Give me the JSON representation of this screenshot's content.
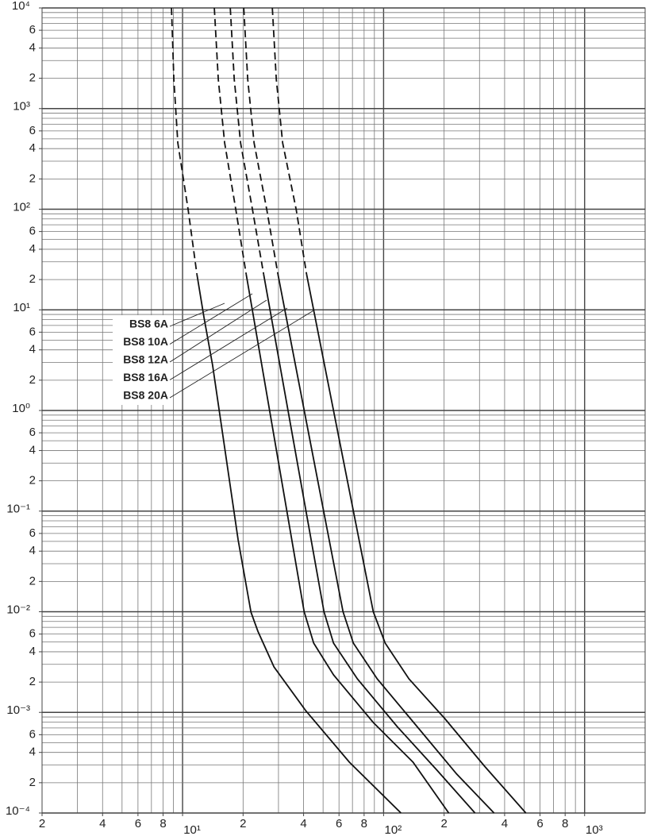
{
  "chart_data": {
    "type": "line",
    "xscale": "log",
    "yscale": "log",
    "grid": true,
    "color": "#111111",
    "xlim": [
      2,
      2000
    ],
    "ylim": [
      0.0001,
      10000
    ],
    "xticks": [
      2,
      4,
      6,
      8,
      {
        "value": 10,
        "label": "10¹"
      },
      {
        "value": 20,
        "label": "2"
      },
      {
        "value": 40,
        "label": "4"
      },
      {
        "value": 60,
        "label": "6"
      },
      {
        "value": 80,
        "label": "8"
      },
      {
        "value": 100,
        "label": "10²"
      },
      {
        "value": 200,
        "label": "2"
      },
      {
        "value": 400,
        "label": "4"
      },
      {
        "value": 600,
        "label": "6"
      },
      {
        "value": 800,
        "label": "8"
      },
      {
        "value": 1000,
        "label": "10³"
      }
    ],
    "yticks": [
      {
        "value": 10000,
        "label": "10⁴"
      },
      {
        "value": 6000,
        "label": "6"
      },
      {
        "value": 4000,
        "label": "4"
      },
      {
        "value": 2000,
        "label": "2"
      },
      {
        "value": 1000,
        "label": "10³"
      },
      {
        "value": 600,
        "label": "6"
      },
      {
        "value": 400,
        "label": "4"
      },
      {
        "value": 200,
        "label": "2"
      },
      {
        "value": 100,
        "label": "10²"
      },
      {
        "value": 60,
        "label": "6"
      },
      {
        "value": 40,
        "label": "4"
      },
      {
        "value": 20,
        "label": "2"
      },
      {
        "value": 10,
        "label": "10¹"
      },
      6,
      4,
      2,
      {
        "value": 1,
        "label": "10⁰"
      },
      {
        "value": 0.6,
        "label": "6"
      },
      {
        "value": 0.4,
        "label": "4"
      },
      {
        "value": 0.2,
        "label": "2"
      },
      {
        "value": 0.1,
        "label": "10⁻¹"
      },
      {
        "value": 0.06,
        "label": "6"
      },
      {
        "value": 0.04,
        "label": "4"
      },
      {
        "value": 0.02,
        "label": "2"
      },
      {
        "value": 0.01,
        "label": "10⁻²"
      },
      {
        "value": 0.006,
        "label": "6"
      },
      {
        "value": 0.004,
        "label": "4"
      },
      {
        "value": 0.002,
        "label": "2"
      },
      {
        "value": 0.001,
        "label": "10⁻³"
      },
      {
        "value": 0.0006,
        "label": "6"
      },
      {
        "value": 0.0004,
        "label": "4"
      },
      {
        "value": 0.0002,
        "label": "2"
      },
      {
        "value": 0.0001,
        "label": "10⁻⁴"
      }
    ],
    "xgrid": [
      2,
      3,
      4,
      5,
      6,
      7,
      8,
      9,
      10,
      20,
      30,
      40,
      50,
      60,
      70,
      80,
      90,
      100,
      200,
      300,
      400,
      500,
      600,
      700,
      800,
      900,
      1000,
      2000
    ],
    "ygrid": [
      0.0001,
      0.0002,
      0.0003,
      0.0004,
      0.0005,
      0.0006,
      0.0007,
      0.0008,
      0.0009,
      0.001,
      0.002,
      0.003,
      0.004,
      0.005,
      0.006,
      0.007,
      0.008,
      0.009,
      0.01,
      0.02,
      0.03,
      0.04,
      0.05,
      0.06,
      0.07,
      0.08,
      0.09,
      0.1,
      0.2,
      0.3,
      0.4,
      0.5,
      0.6,
      0.7,
      0.8,
      0.9,
      1,
      2,
      3,
      4,
      5,
      6,
      7,
      8,
      9,
      10,
      20,
      30,
      40,
      50,
      60,
      70,
      80,
      90,
      100,
      200,
      300,
      400,
      500,
      600,
      700,
      800,
      900,
      1000,
      2000,
      3000,
      4000,
      5000,
      6000,
      7000,
      8000,
      9000,
      10000
    ],
    "series": [
      {
        "name": "BS8 6A",
        "dashed_x": [
          8.81,
          9.05,
          9.47,
          10.66,
          11.78
        ],
        "dashed_values": [
          10000,
          1950,
          456,
          99,
          22.7
        ],
        "x": [
          11.78,
          12.79,
          14.1,
          18.9,
          21.9,
          23.7,
          28.5,
          41.0,
          67.6,
          122
        ],
        "values": [
          22.7,
          8.38,
          2.82,
          0.0518,
          0.0099,
          0.0064,
          0.00283,
          0.00104,
          0.00032,
          0.0001
        ]
      },
      {
        "name": "BS8 10A",
        "dashed_x": [
          14.39,
          15.06,
          16.2,
          18.4,
          20.72
        ],
        "dashed_values": [
          10000,
          1950,
          456,
          99,
          22.7
        ],
        "x": [
          20.72,
          40.25,
          44.89,
          56.36,
          88.85,
          140.1,
          210.9
        ],
        "values": [
          22.7,
          0.01,
          0.00488,
          0.00236,
          0.000793,
          0.00032,
          0.0001
        ]
      },
      {
        "name": "BS8 12A",
        "dashed_x": [
          17.27,
          18.07,
          19.44,
          22.27,
          25.3
        ],
        "dashed_values": [
          10000,
          1950,
          456,
          99,
          22.7
        ],
        "x": [
          25.3,
          50.53,
          56.36,
          74.05,
          116.7,
          184.0,
          284.8
        ],
        "values": [
          22.7,
          0.01,
          0.00488,
          0.00215,
          0.000724,
          0.000267,
          0.0001
        ]
      },
      {
        "name": "BS8 16A",
        "dashed_x": [
          20.15,
          21.09,
          22.68,
          26.24,
          29.81
        ],
        "dashed_values": [
          10000,
          1950,
          456,
          99,
          22.7
        ],
        "x": [
          29.81,
          62.85,
          70.75,
          92.98,
          146.6,
          231.0,
          354.3
        ],
        "values": [
          22.7,
          0.01,
          0.00488,
          0.00215,
          0.000724,
          0.000244,
          0.0001
        ]
      },
      {
        "name": "BS8 20A",
        "dashed_x": [
          27.97,
          29.27,
          31.48,
          36.75,
          41.36
        ],
        "dashed_values": [
          10000,
          1950,
          456,
          99,
          22.7
        ],
        "x": [
          41.36,
          88.85,
          101.8,
          133.8,
          201.5,
          317.7,
          510.0
        ],
        "values": [
          22.7,
          0.01,
          0.00488,
          0.00215,
          0.000869,
          0.000292,
          0.0001
        ]
      }
    ]
  }
}
